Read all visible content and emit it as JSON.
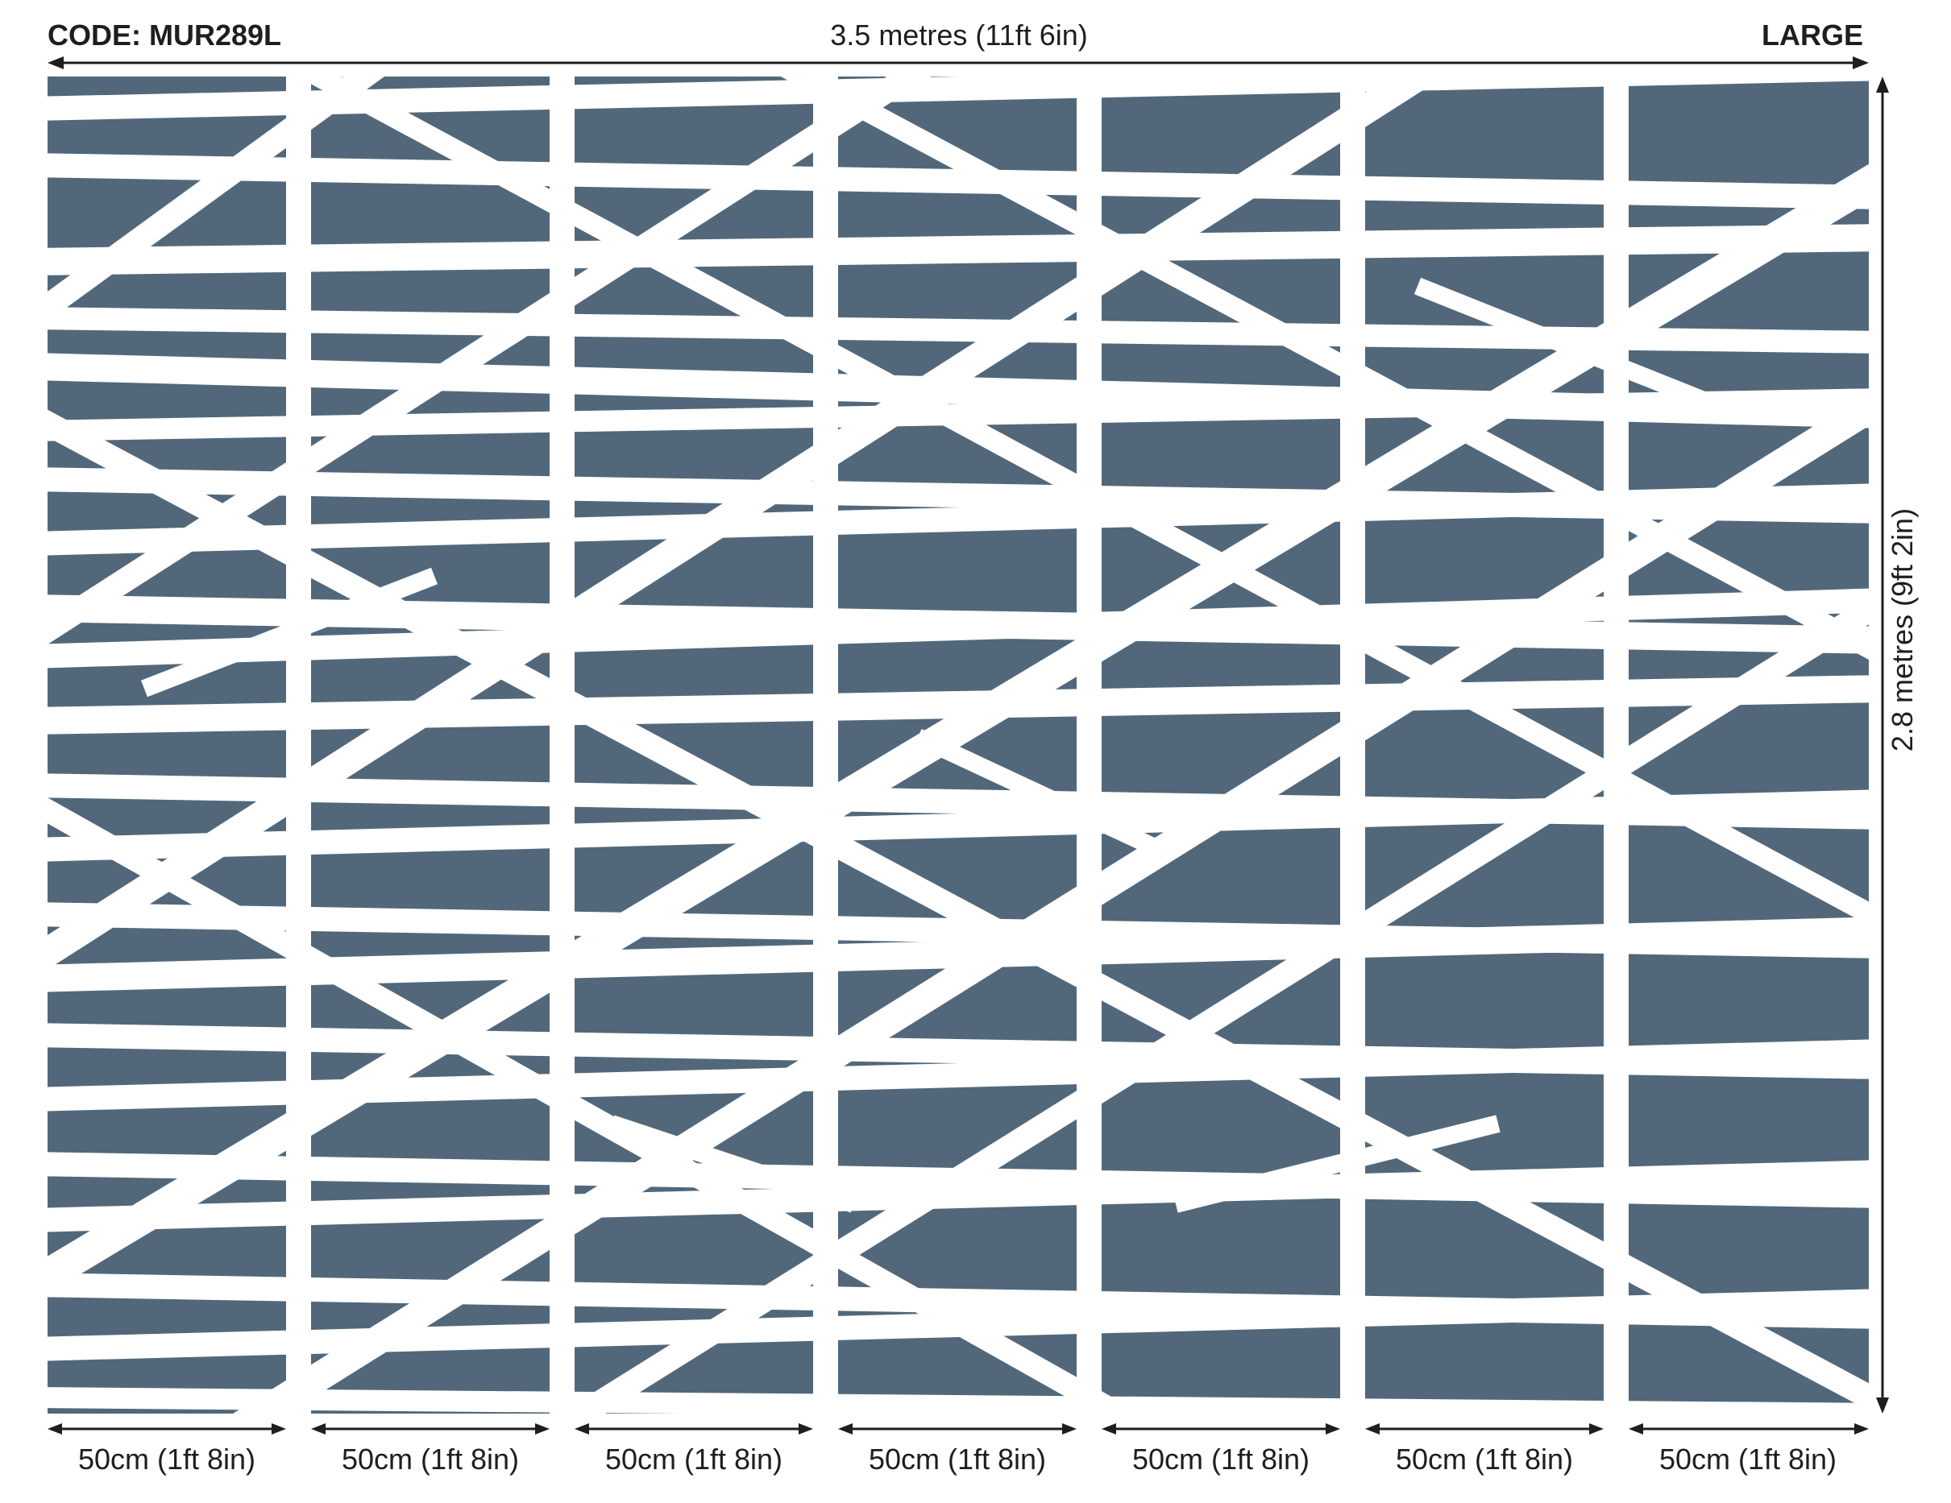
{
  "header": {
    "code": "CODE: MUR289L",
    "width_measure": "3.5 metres (11ft 6in)",
    "size": "LARGE"
  },
  "side": {
    "height_measure": "2.8 metres (9ft 2in)"
  },
  "panels": [
    {
      "label": "50cm (1ft 8in)"
    },
    {
      "label": "50cm (1ft 8in)"
    },
    {
      "label": "50cm (1ft 8in)"
    },
    {
      "label": "50cm (1ft 8in)"
    },
    {
      "label": "50cm (1ft 8in)"
    },
    {
      "label": "50cm (1ft 8in)"
    },
    {
      "label": "50cm (1ft 8in)"
    }
  ],
  "colors": {
    "pattern": "#52687a",
    "background": "#ffffff",
    "text": "#1e1e1e"
  }
}
